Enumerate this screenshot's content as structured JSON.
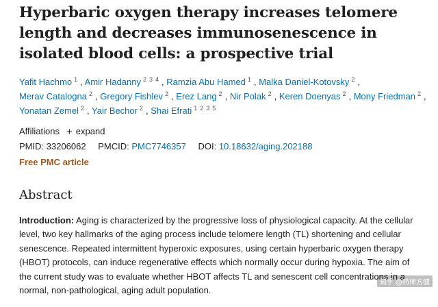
{
  "article": {
    "title": "Hyperbaric oxygen therapy increases telomere length and decreases immunosenescence in isolated blood cells: a prospective trial",
    "authors": [
      {
        "name": "Yafit Hachmo",
        "affs": [
          "1"
        ]
      },
      {
        "name": "Amir Hadanny",
        "affs": [
          "2",
          "3",
          "4"
        ]
      },
      {
        "name": "Ramzia Abu Hamed",
        "affs": [
          "1"
        ]
      },
      {
        "name": "Malka Daniel-Kotovsky",
        "affs": [
          "2"
        ]
      },
      {
        "name": "Merav Catalogna",
        "affs": [
          "2"
        ]
      },
      {
        "name": "Gregory Fishlev",
        "affs": [
          "2"
        ]
      },
      {
        "name": "Erez Lang",
        "affs": [
          "2"
        ]
      },
      {
        "name": "Nir Polak",
        "affs": [
          "2"
        ]
      },
      {
        "name": "Keren Doenyas",
        "affs": [
          "2"
        ]
      },
      {
        "name": "Mony Friedman",
        "affs": [
          "2"
        ]
      },
      {
        "name": "Yonatan Zemel",
        "affs": [
          "2"
        ]
      },
      {
        "name": "Yair Bechor",
        "affs": [
          "2"
        ]
      },
      {
        "name": "Shai Efrati",
        "affs": [
          "1",
          "2",
          "3",
          "5"
        ]
      }
    ],
    "affiliations_label": "Affiliations",
    "expand_label": "expand",
    "pmid_label": "PMID:",
    "pmid": "33206062",
    "pmcid_label": "PMCID:",
    "pmcid": "PMC7746357",
    "doi_label": "DOI:",
    "doi": "10.18632/aging.202188",
    "free_label": "Free PMC article"
  },
  "abstract": {
    "heading": "Abstract",
    "intro_label": "Introduction:",
    "intro_text": " Aging is characterized by the progressive loss of physiological capacity. At the cellular level, two key hallmarks of the aging process include telomere length (TL) shortening and cellular senescence. Repeated intermittent hyperoxic exposures, using certain hyperbaric oxygen therapy (HBOT) protocols, can induce regenerative effects which normally occur during hypoxia. The aim of the current study was to evaluate whether HBOT affects TL and senescent cell concentrations in a normal, non-pathological, aging adult population."
  },
  "watermark": "知乎 @药师方健"
}
